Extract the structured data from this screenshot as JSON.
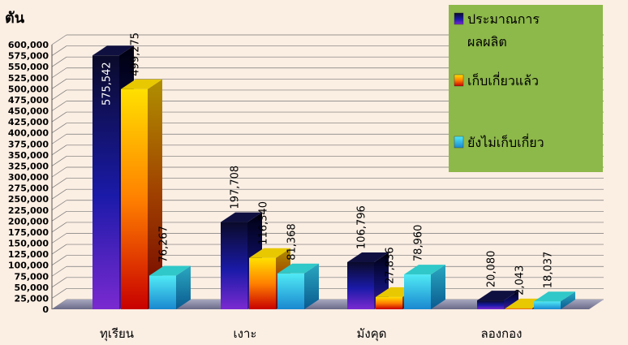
{
  "chart_data": {
    "type": "bar",
    "title": "",
    "ylabel": "ตัน",
    "xlabel": "",
    "ylim": [
      0,
      600000
    ],
    "ytick_step": 25000,
    "grid": true,
    "legend_position": "top-right",
    "categories": [
      "ทุเรียน",
      "เงาะ",
      "มังคุด",
      "ลองกอง"
    ],
    "series": [
      {
        "name": "ประมาณการผลผลิต",
        "legend_lines": [
          "ประมาณการ",
          "ผลผลิต"
        ],
        "values": [
          575542,
          197708,
          106796,
          20080
        ]
      },
      {
        "name": "เก็บเกี่ยวแล้ว",
        "legend_lines": [
          "เก็บเกี่ยวแล้ว"
        ],
        "values": [
          499275,
          116340,
          27836,
          2043
        ]
      },
      {
        "name": "ยังไม่เก็บเกี่ยว",
        "legend_lines": [
          "ยังไม่เก็บเกี่ยว"
        ],
        "values": [
          76267,
          81368,
          78960,
          18037
        ]
      }
    ],
    "data_labels": [
      [
        "575,542",
        "499,275",
        "76,267"
      ],
      [
        "197,708",
        "116,340",
        "81,368"
      ],
      [
        "106,796",
        "27,836",
        "78,960"
      ],
      [
        "20,080",
        "2,043",
        "18,037"
      ]
    ],
    "colors": {
      "series1_top": "#0a0a2a",
      "series1_mid": "#1a1aa8",
      "series1_bottom": "#7a2ad0",
      "series2_top": "#ffe000",
      "series2_mid": "#ff7a00",
      "series2_bottom": "#c00000",
      "series3_top": "#40e0f0",
      "series3_bottom": "#1a8ad0",
      "legend_bg": "#8db84a",
      "floor": "#8a8aa8"
    }
  }
}
